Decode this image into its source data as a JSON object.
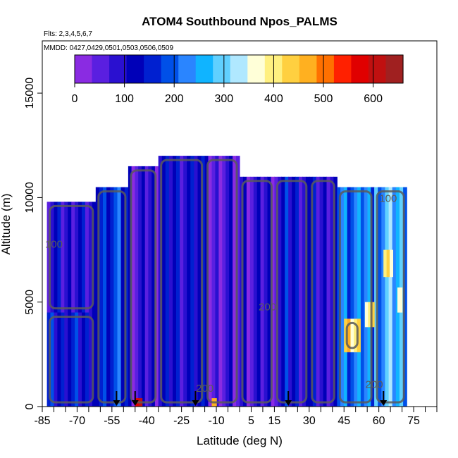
{
  "chart_data": {
    "type": "heatmap",
    "title": "ATOM4 Southbound Npos_PALMS",
    "subtitle_flights": "Flts: 2,3,4,5,6,7",
    "subtitle_dates": "MMDD: 0427,0429,0501,0503,0506,0509",
    "xlabel": "Latitude (deg N)",
    "ylabel": "Altitude (m)",
    "xlim": [
      -85,
      85
    ],
    "ylim": [
      0,
      17500
    ],
    "x_ticks": [
      -85,
      -70,
      -55,
      -40,
      -25,
      -10,
      5,
      15,
      30,
      45,
      60,
      75
    ],
    "y_ticks": [
      0,
      5000,
      10000,
      15000
    ],
    "colorbar": {
      "min": 0,
      "max": 660,
      "ticks": [
        0,
        100,
        200,
        300,
        400,
        500,
        600
      ],
      "colors": [
        "#8a2be2",
        "#5a1fe0",
        "#2a10d0",
        "#0000b8",
        "#0020d0",
        "#0050e8",
        "#2a85ff",
        "#10b4ff",
        "#60d0ff",
        "#b0e8ff",
        "#ffffd8",
        "#fff080",
        "#ffd040",
        "#ffb020",
        "#ff7000",
        "#ff2000",
        "#e00000",
        "#c01010",
        "#a02020"
      ]
    },
    "contour_labels": [
      {
        "text": "100",
        "x": 64,
        "y": 9800
      },
      {
        "text": "100",
        "x": -80,
        "y": 7600
      },
      {
        "text": "200",
        "x": 12,
        "y": 4600
      },
      {
        "text": "200",
        "x": -15,
        "y": 700
      },
      {
        "text": "200",
        "x": 58,
        "y": 900
      }
    ],
    "flight_arrows_latitude": [
      -53,
      -45,
      -19,
      21,
      62
    ],
    "regions": [
      {
        "lat": [
          -83,
          -62
        ],
        "alt": [
          4500,
          9800
        ],
        "level": 90
      },
      {
        "lat": [
          -83,
          -62
        ],
        "alt": [
          0,
          4500
        ],
        "level": 130
      },
      {
        "lat": [
          -62,
          -48
        ],
        "alt": [
          0,
          10500
        ],
        "level": 170
      },
      {
        "lat": [
          -48,
          -35
        ],
        "alt": [
          0,
          11500
        ],
        "level": 80
      },
      {
        "lat": [
          -35,
          -15
        ],
        "alt": [
          0,
          12000
        ],
        "level": 110
      },
      {
        "lat": [
          -15,
          0
        ],
        "alt": [
          0,
          12000
        ],
        "level": 60
      },
      {
        "lat": [
          0,
          15
        ],
        "alt": [
          0,
          11000
        ],
        "level": 75
      },
      {
        "lat": [
          15,
          30
        ],
        "alt": [
          0,
          11000
        ],
        "level": 120
      },
      {
        "lat": [
          30,
          42
        ],
        "alt": [
          0,
          11000
        ],
        "level": 90
      },
      {
        "lat": [
          42,
          58
        ],
        "alt": [
          0,
          10500
        ],
        "level": 220
      },
      {
        "lat": [
          58,
          72
        ],
        "alt": [
          0,
          10500
        ],
        "level": 260
      },
      {
        "lat": [
          -45,
          -42
        ],
        "alt": [
          0,
          400
        ],
        "level": 580
      },
      {
        "lat": [
          -12,
          -10
        ],
        "alt": [
          0,
          400
        ],
        "level": 410
      },
      {
        "lat": [
          45,
          52
        ],
        "alt": [
          2600,
          4200
        ],
        "level": 420
      },
      {
        "lat": [
          54,
          58
        ],
        "alt": [
          3800,
          5000
        ],
        "level": 410
      },
      {
        "lat": [
          62,
          66
        ],
        "alt": [
          6200,
          7500
        ],
        "level": 390
      },
      {
        "lat": [
          68,
          70
        ],
        "alt": [
          4500,
          5700
        ],
        "level": 400
      }
    ]
  }
}
